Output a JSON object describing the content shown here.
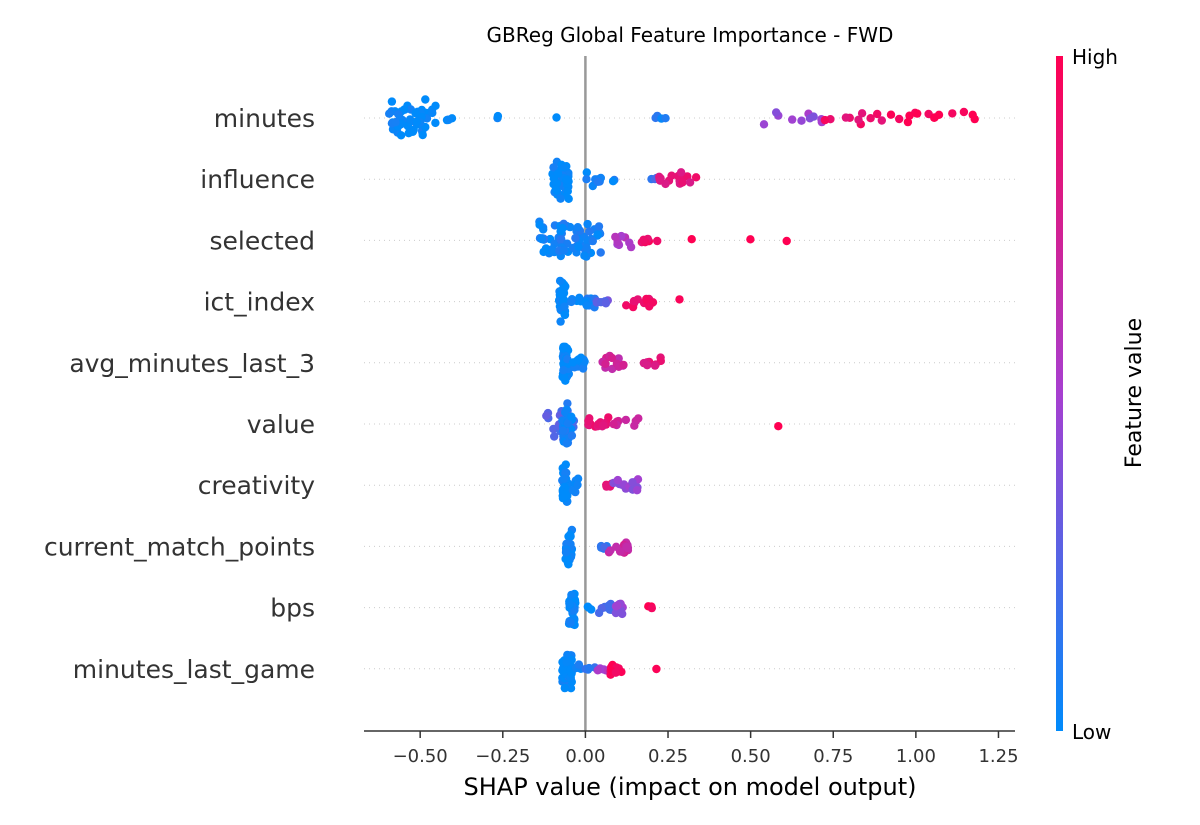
{
  "chart_data": {
    "type": "scatter",
    "title": "GBReg Global Feature Importance - FWD",
    "xlabel": "SHAP value (impact on model output)",
    "xlim": [
      -0.67,
      1.3
    ],
    "xticks": [
      {
        "value": -0.5,
        "label": "−0.50"
      },
      {
        "value": -0.25,
        "label": "−0.25"
      },
      {
        "value": 0.0,
        "label": "0.00"
      },
      {
        "value": 0.25,
        "label": "0.25"
      },
      {
        "value": 0.5,
        "label": "0.50"
      },
      {
        "value": 0.75,
        "label": "0.75"
      },
      {
        "value": 1.0,
        "label": "1.00"
      },
      {
        "value": 1.25,
        "label": "1.25"
      }
    ],
    "zero_line": 0.0,
    "colorbar": {
      "label": "Feature value",
      "high_label": "High",
      "low_label": "Low",
      "low_color": "#008bfb",
      "mid_color": "#a73fd0",
      "high_color": "#ff0052"
    },
    "features": [
      {
        "name": "minutes",
        "clusters": [
          {
            "x": [
              -0.45,
              -0.6
            ],
            "fv": 0.0,
            "n": 60
          },
          {
            "x": [
              -0.43,
              -0.38
            ],
            "fv": 0.0,
            "n": 4
          },
          {
            "x": [
              -0.28,
              -0.26
            ],
            "fv": 0.0,
            "n": 2
          },
          {
            "x": [
              -0.09,
              -0.08
            ],
            "fv": 0.0,
            "n": 1
          },
          {
            "x": [
              0.21,
              0.25
            ],
            "fv": 0.08,
            "n": 4
          },
          {
            "x": [
              0.52,
              0.72
            ],
            "fv": 0.45,
            "n": 10
          },
          {
            "x": [
              0.72,
              0.9
            ],
            "fv": 0.9,
            "n": 10
          },
          {
            "x": [
              0.92,
              1.2
            ],
            "fv": 1.0,
            "n": 14
          }
        ]
      },
      {
        "name": "influence",
        "clusters": [
          {
            "x": [
              -0.1,
              -0.05
            ],
            "fv": 0.0,
            "n": 60
          },
          {
            "x": [
              -0.01,
              0.05
            ],
            "fv": 0.05,
            "n": 8
          },
          {
            "x": [
              0.07,
              0.09
            ],
            "fv": 0.05,
            "n": 2
          },
          {
            "x": [
              0.2,
              0.24
            ],
            "fv": 0.2,
            "n": 4
          },
          {
            "x": [
              0.22,
              0.35
            ],
            "fv": 0.85,
            "n": 16
          }
        ]
      },
      {
        "name": "selected",
        "clusters": [
          {
            "x": [
              -0.14,
              -0.07
            ],
            "fv": 0.05,
            "n": 25
          },
          {
            "x": [
              -0.08,
              0.05
            ],
            "fv": 0.05,
            "n": 45
          },
          {
            "x": [
              0.08,
              0.14
            ],
            "fv": 0.55,
            "n": 8
          },
          {
            "x": [
              0.15,
              0.22
            ],
            "fv": 0.92,
            "n": 6
          },
          {
            "x": [
              0.32,
              0.33
            ],
            "fv": 1.0,
            "n": 1
          },
          {
            "x": [
              0.49,
              0.5
            ],
            "fv": 1.0,
            "n": 1
          },
          {
            "x": [
              0.6,
              0.61
            ],
            "fv": 1.0,
            "n": 1
          }
        ]
      },
      {
        "name": "ict_index",
        "clusters": [
          {
            "x": [
              -0.08,
              -0.06
            ],
            "fv": 0.0,
            "n": 40
          },
          {
            "x": [
              -0.05,
              0.03
            ],
            "fv": 0.05,
            "n": 14
          },
          {
            "x": [
              0.03,
              0.07
            ],
            "fv": 0.3,
            "n": 6
          },
          {
            "x": [
              0.11,
              0.21
            ],
            "fv": 0.9,
            "n": 14
          },
          {
            "x": [
              0.28,
              0.29
            ],
            "fv": 1.0,
            "n": 1
          }
        ]
      },
      {
        "name": "avg_minutes_last_3",
        "clusters": [
          {
            "x": [
              -0.07,
              -0.05
            ],
            "fv": 0.0,
            "n": 40
          },
          {
            "x": [
              -0.04,
              0.0
            ],
            "fv": 0.0,
            "n": 12
          },
          {
            "x": [
              0.05,
              0.12
            ],
            "fv": 0.7,
            "n": 14
          },
          {
            "x": [
              0.17,
              0.23
            ],
            "fv": 0.85,
            "n": 8
          }
        ]
      },
      {
        "name": "value",
        "clusters": [
          {
            "x": [
              -0.12,
              -0.03
            ],
            "fv": 0.25,
            "n": 22
          },
          {
            "x": [
              -0.07,
              -0.04
            ],
            "fv": 0.05,
            "n": 30
          },
          {
            "x": [
              0.0,
              0.07
            ],
            "fv": 0.85,
            "n": 16
          },
          {
            "x": [
              0.07,
              0.17
            ],
            "fv": 0.75,
            "n": 8
          },
          {
            "x": [
              0.58,
              0.59
            ],
            "fv": 1.0,
            "n": 1
          }
        ]
      },
      {
        "name": "creativity",
        "clusters": [
          {
            "x": [
              -0.07,
              -0.05
            ],
            "fv": 0.0,
            "n": 36
          },
          {
            "x": [
              -0.04,
              -0.02
            ],
            "fv": 0.0,
            "n": 8
          },
          {
            "x": [
              0.06,
              0.08
            ],
            "fv": 0.85,
            "n": 4
          },
          {
            "x": [
              0.08,
              0.16
            ],
            "fv": 0.45,
            "n": 14
          }
        ]
      },
      {
        "name": "current_match_points",
        "clusters": [
          {
            "x": [
              -0.06,
              -0.04
            ],
            "fv": 0.0,
            "n": 30
          },
          {
            "x": [
              0.04,
              0.07
            ],
            "fv": 0.15,
            "n": 6
          },
          {
            "x": [
              0.07,
              0.13
            ],
            "fv": 0.7,
            "n": 14
          }
        ]
      },
      {
        "name": "bps",
        "clusters": [
          {
            "x": [
              -0.05,
              -0.03
            ],
            "fv": 0.0,
            "n": 30
          },
          {
            "x": [
              0.0,
              0.02
            ],
            "fv": 0.0,
            "n": 3
          },
          {
            "x": [
              0.04,
              0.08
            ],
            "fv": 0.2,
            "n": 8
          },
          {
            "x": [
              0.08,
              0.12
            ],
            "fv": 0.45,
            "n": 8
          },
          {
            "x": [
              0.19,
              0.21
            ],
            "fv": 1.0,
            "n": 3
          }
        ]
      },
      {
        "name": "minutes_last_game",
        "clusters": [
          {
            "x": [
              -0.07,
              -0.04
            ],
            "fv": 0.0,
            "n": 40
          },
          {
            "x": [
              -0.03,
              0.03
            ],
            "fv": 0.1,
            "n": 10
          },
          {
            "x": [
              0.03,
              0.07
            ],
            "fv": 0.5,
            "n": 6
          },
          {
            "x": [
              0.07,
              0.11
            ],
            "fv": 1.0,
            "n": 14
          },
          {
            "x": [
              0.21,
              0.22
            ],
            "fv": 1.0,
            "n": 1
          }
        ]
      }
    ]
  }
}
